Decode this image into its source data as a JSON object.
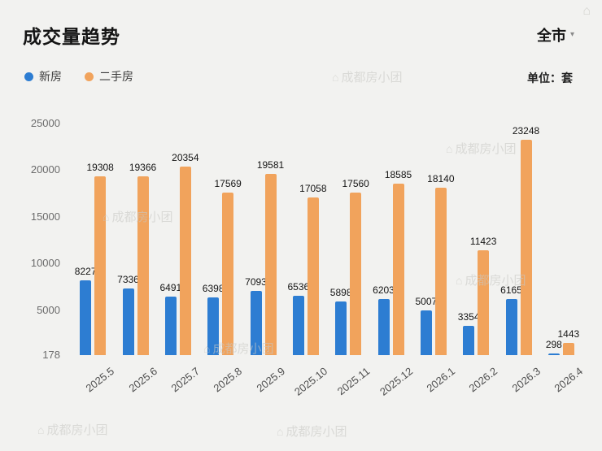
{
  "header": {
    "title": "成交量趋势",
    "region": "全市"
  },
  "unit_label": "单位：套",
  "legend": [
    {
      "label": "新房",
      "color": "#2d7dd2"
    },
    {
      "label": "二手房",
      "color": "#f1a35c"
    }
  ],
  "watermark": {
    "text": "成都房小团"
  },
  "icons": {
    "dropdown_arrow": "▾",
    "watermark_logo": "⌂"
  },
  "chart_data": {
    "type": "bar",
    "title": "成交量趋势",
    "unit": "套",
    "categories": [
      "2025.5",
      "2025.6",
      "2025.7",
      "2025.8",
      "2025.9",
      "2025.10",
      "2025.11",
      "2025.12",
      "2026.1",
      "2026.2",
      "2026.3",
      "2026.4"
    ],
    "series": [
      {
        "name": "新房",
        "color": "#2d7dd2",
        "values": [
          8227,
          7336,
          6491,
          6398,
          7093,
          6536,
          5898,
          6203,
          5007,
          3354,
          6165,
          298
        ]
      },
      {
        "name": "二手房",
        "color": "#f1a35c",
        "values": [
          19308,
          19366,
          20354,
          17569,
          19581,
          17058,
          17560,
          18585,
          18140,
          11423,
          23248,
          1443
        ]
      }
    ],
    "y_ticks": [
      178,
      5000,
      10000,
      15000,
      20000,
      25000
    ],
    "ylim": [
      178,
      25000
    ],
    "xlabel": "",
    "ylabel": "",
    "grid": false,
    "legend_position": "top-left",
    "value_labels": true
  }
}
